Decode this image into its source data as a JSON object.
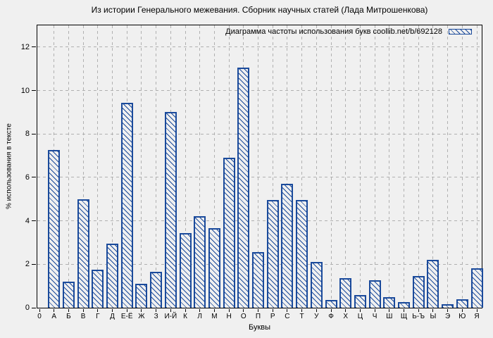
{
  "title": "Из истории Генерального межевания. Сборник научных статей (Лада Митрошенкова)",
  "legend": {
    "label": "Диаграмма частоты использования букв coollib.net/b/692128"
  },
  "axes": {
    "x_label": "Буквы",
    "y_label": "% использования в тексте",
    "y_ticks": [
      0,
      2,
      4,
      6,
      8,
      10,
      12
    ],
    "x_origin_label": "0"
  },
  "colors": {
    "bar": "#1a4a9b",
    "grid": "#b0b0b0",
    "background": "#f0f0f0",
    "axis": "#000000",
    "text": "#000000"
  },
  "chart_data": {
    "type": "bar",
    "title": "Из истории Генерального межевания. Сборник научных статей (Лада Митрошенкова)",
    "legend": "Диаграмма частоты использования букв coollib.net/b/692128",
    "xlabel": "Буквы",
    "ylabel": "% использования в тексте",
    "ylim": [
      0,
      13
    ],
    "y_tick_step": 2,
    "grid": true,
    "legend_position": "top-right",
    "bar_style": "diagonal-hatch",
    "categories": [
      "А",
      "Б",
      "В",
      "Г",
      "Д",
      "Е-Ё",
      "Ж",
      "З",
      "И-Й",
      "К",
      "Л",
      "М",
      "Н",
      "О",
      "П",
      "Р",
      "С",
      "Т",
      "У",
      "Ф",
      "Х",
      "Ц",
      "Ч",
      "Ш",
      "Щ",
      "Ь-Ъ",
      "Ы",
      "Э",
      "Ю",
      "Я"
    ],
    "values": [
      7.25,
      1.2,
      5.0,
      1.75,
      2.95,
      9.45,
      1.1,
      1.65,
      9.0,
      3.45,
      4.2,
      3.65,
      6.9,
      11.05,
      2.55,
      4.95,
      5.7,
      4.95,
      2.1,
      0.35,
      1.35,
      0.6,
      1.25,
      0.5,
      0.25,
      1.45,
      2.2,
      0.15,
      0.4,
      1.8
    ]
  }
}
